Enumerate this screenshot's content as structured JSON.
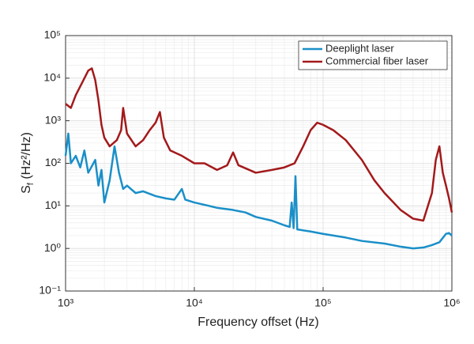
{
  "chart_data": {
    "type": "line",
    "xlabel": "Frequency offset (Hz)",
    "ylabel": {
      "symbol": "S",
      "subscript": "f",
      "unit": " (Hz²/Hz)"
    },
    "xscale": "log",
    "yscale": "log",
    "xlim": [
      1000,
      1000000
    ],
    "ylim": [
      0.1,
      100000
    ],
    "xticks": [
      {
        "value": 1000,
        "label": "10³"
      },
      {
        "value": 10000,
        "label": "10⁴"
      },
      {
        "value": 100000,
        "label": "10⁵"
      },
      {
        "value": 1000000,
        "label": "10⁶"
      }
    ],
    "yticks": [
      {
        "value": 0.1,
        "label": "10⁻¹"
      },
      {
        "value": 1,
        "label": "10⁰"
      },
      {
        "value": 10,
        "label": "10¹"
      },
      {
        "value": 100,
        "label": "10²"
      },
      {
        "value": 1000,
        "label": "10³"
      },
      {
        "value": 10000,
        "label": "10⁴"
      },
      {
        "value": 100000,
        "label": "10⁵"
      }
    ],
    "grid": true,
    "minor_grid": true,
    "legend": "upper right",
    "series": [
      {
        "name": "Deeplight laser",
        "color": "#1a8fc8",
        "x": [
          1000,
          1050,
          1100,
          1200,
          1300,
          1400,
          1500,
          1700,
          1800,
          1900,
          2000,
          2200,
          2400,
          2600,
          2800,
          3000,
          3500,
          4000,
          5000,
          6000,
          7000,
          8000,
          8500,
          10000,
          13000,
          15000,
          20000,
          25000,
          30000,
          40000,
          50000,
          55000,
          57000,
          59000,
          61000,
          63000,
          80000,
          100000,
          150000,
          200000,
          300000,
          400000,
          500000,
          600000,
          700000,
          800000,
          900000,
          950000,
          1000000
        ],
        "values": [
          150,
          500,
          100,
          150,
          80,
          200,
          60,
          120,
          30,
          70,
          12,
          40,
          250,
          60,
          25,
          30,
          20,
          22,
          17,
          15,
          14,
          25,
          14,
          12,
          10,
          9,
          8,
          7,
          5.5,
          4.5,
          3.5,
          3.2,
          12,
          3,
          50,
          2.8,
          2.5,
          2.2,
          1.8,
          1.5,
          1.3,
          1.1,
          1.0,
          1.05,
          1.2,
          1.4,
          2.2,
          2.3,
          2.0
        ]
      },
      {
        "name": "Commercial fiber laser",
        "color": "#a3191b",
        "x": [
          1000,
          1100,
          1200,
          1350,
          1500,
          1600,
          1700,
          1800,
          1900,
          2000,
          2200,
          2500,
          2700,
          2800,
          3000,
          3500,
          4000,
          4500,
          5000,
          5400,
          5800,
          6500,
          8000,
          10000,
          12000,
          15000,
          18000,
          20000,
          22000,
          30000,
          40000,
          50000,
          60000,
          70000,
          80000,
          90000,
          100000,
          120000,
          150000,
          200000,
          250000,
          300000,
          400000,
          500000,
          600000,
          700000,
          750000,
          800000,
          850000,
          900000,
          950000,
          1000000
        ],
        "values": [
          2500,
          2000,
          4000,
          8000,
          15000,
          17000,
          9000,
          3000,
          800,
          400,
          250,
          350,
          600,
          2000,
          500,
          250,
          350,
          600,
          900,
          1600,
          400,
          200,
          150,
          100,
          100,
          70,
          90,
          180,
          90,
          60,
          70,
          80,
          100,
          250,
          600,
          900,
          800,
          600,
          350,
          120,
          40,
          20,
          8,
          5,
          4.5,
          20,
          120,
          250,
          60,
          30,
          15,
          7
        ]
      }
    ]
  }
}
